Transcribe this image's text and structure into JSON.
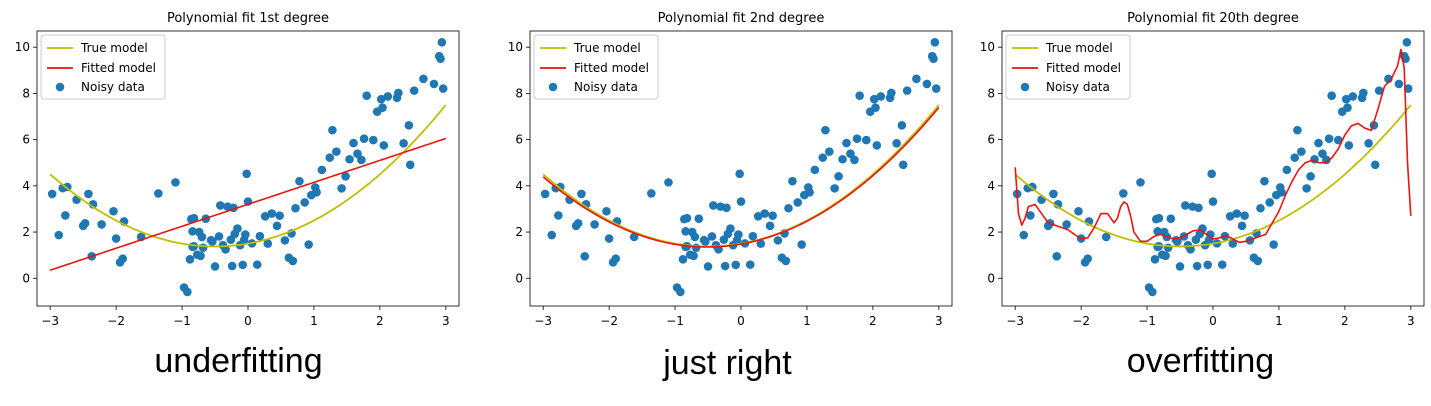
{
  "colors": {
    "true_model": "#bfbf00",
    "fitted_model": "#e8160e",
    "noisy_data": "#1f77b4"
  },
  "legend": {
    "true_model": "True model",
    "fitted_model": "Fitted model",
    "noisy_data": "Noisy data"
  },
  "chart_data": [
    {
      "type": "line",
      "title": "Polynomial fit 1st degree",
      "caption": "underfitting",
      "xlim": [
        -3.2,
        3.2
      ],
      "ylim": [
        -1.2,
        10.7
      ],
      "xticks": [
        -3,
        -2,
        -1,
        0,
        1,
        2,
        3
      ],
      "yticks": [
        0,
        2,
        4,
        6,
        8,
        10
      ],
      "true_model": {
        "coef": [
          1.5,
          0.5,
          0.5
        ]
      },
      "fitted_model": {
        "coef": [
          3.2,
          0.95
        ]
      },
      "legend_position": "upper-left",
      "grid": false
    },
    {
      "type": "line",
      "title": "Polynomial fit 2nd degree",
      "caption": "just right",
      "xlim": [
        -3.2,
        3.2
      ],
      "ylim": [
        -1.2,
        10.7
      ],
      "xticks": [
        -3,
        -2,
        -1,
        0,
        1,
        2,
        3
      ],
      "yticks": [
        0,
        2,
        4,
        6,
        8,
        10
      ],
      "true_model": {
        "coef": [
          1.5,
          0.5,
          0.5
        ]
      },
      "fitted_model": {
        "coef": [
          1.48,
          0.5,
          0.49
        ]
      },
      "legend_position": "upper-left",
      "grid": false
    },
    {
      "type": "line",
      "title": "Polynomial fit 20th degree",
      "caption": "overfitting",
      "xlim": [
        -3.2,
        3.2
      ],
      "ylim": [
        -1.2,
        10.7
      ],
      "xticks": [
        -3,
        -2,
        -1,
        0,
        1,
        2,
        3
      ],
      "yticks": [
        0,
        2,
        4,
        6,
        8,
        10
      ],
      "true_model": {
        "coef": [
          1.5,
          0.5,
          0.5
        ]
      },
      "fitted_model": {
        "x": [
          -3.0,
          -2.95,
          -2.9,
          -2.85,
          -2.8,
          -2.7,
          -2.6,
          -2.5,
          -2.4,
          -2.3,
          -2.2,
          -2.1,
          -2.0,
          -1.9,
          -1.8,
          -1.7,
          -1.6,
          -1.5,
          -1.45,
          -1.4,
          -1.35,
          -1.3,
          -1.25,
          -1.2,
          -1.1,
          -1.0,
          -0.9,
          -0.8,
          -0.7,
          -0.6,
          -0.5,
          -0.4,
          -0.3,
          -0.2,
          -0.1,
          0.0,
          0.1,
          0.2,
          0.3,
          0.4,
          0.5,
          0.6,
          0.7,
          0.8,
          0.9,
          1.0,
          1.1,
          1.2,
          1.3,
          1.4,
          1.5,
          1.6,
          1.7,
          1.8,
          1.9,
          2.0,
          2.1,
          2.2,
          2.3,
          2.4,
          2.5,
          2.6,
          2.7,
          2.8,
          2.85,
          2.9,
          2.95,
          3.0
        ],
        "y": [
          4.8,
          2.8,
          2.3,
          2.6,
          3.1,
          3.2,
          2.8,
          2.4,
          2.3,
          2.2,
          2.1,
          1.9,
          1.7,
          1.75,
          2.2,
          2.8,
          2.8,
          2.4,
          2.6,
          3.1,
          3.3,
          3.2,
          2.7,
          2.0,
          1.6,
          1.6,
          1.8,
          1.9,
          1.8,
          1.7,
          1.75,
          1.9,
          2.05,
          2.1,
          1.9,
          1.7,
          1.75,
          1.85,
          1.7,
          1.55,
          1.6,
          1.7,
          1.8,
          1.9,
          2.4,
          2.9,
          3.6,
          4.2,
          4.7,
          5.0,
          5.1,
          5.0,
          5.0,
          5.2,
          5.6,
          6.2,
          6.6,
          6.7,
          6.5,
          6.4,
          7.3,
          8.3,
          8.6,
          9.2,
          9.9,
          9.1,
          5.0,
          2.7
        ]
      },
      "legend_position": "upper-left",
      "grid": false
    }
  ],
  "noisy_data": {
    "x": [
      -2.97,
      -2.87,
      -2.81,
      -2.77,
      -2.74,
      -2.6,
      -2.5,
      -2.47,
      -2.42,
      -2.37,
      -2.35,
      -2.22,
      -2.04,
      -2.0,
      -1.94,
      -1.9,
      -1.88,
      -1.62,
      -1.36,
      -1.1,
      -0.97,
      -0.92,
      -0.88,
      -0.86,
      -0.84,
      -0.84,
      -0.82,
      -0.82,
      -0.77,
      -0.74,
      -0.72,
      -0.7,
      -0.68,
      -0.64,
      -0.56,
      -0.54,
      -0.5,
      -0.44,
      -0.42,
      -0.38,
      -0.34,
      -0.31,
      -0.26,
      -0.24,
      -0.22,
      -0.2,
      -0.16,
      -0.12,
      -0.08,
      -0.06,
      -0.04,
      -0.02,
      0.0,
      0.06,
      0.14,
      0.18,
      0.26,
      0.3,
      0.36,
      0.44,
      0.48,
      0.56,
      0.62,
      0.66,
      0.68,
      0.72,
      0.78,
      0.86,
      0.92,
      0.96,
      1.02,
      1.04,
      1.12,
      1.24,
      1.28,
      1.34,
      1.42,
      1.48,
      1.54,
      1.6,
      1.66,
      1.72,
      1.76,
      1.8,
      1.9,
      1.96,
      2.02,
      2.04,
      2.06,
      2.12,
      2.26,
      2.28,
      2.36,
      2.44,
      2.46,
      2.52,
      2.66,
      2.82,
      2.9,
      2.92,
      2.94,
      2.96
    ],
    "y": [
      3.65,
      1.87,
      3.9,
      2.72,
      3.95,
      3.4,
      2.27,
      2.38,
      3.65,
      0.95,
      3.2,
      2.33,
      2.9,
      1.72,
      0.69,
      0.85,
      2.46,
      1.79,
      3.67,
      4.15,
      -0.4,
      -0.59,
      0.82,
      2.56,
      1.36,
      2.03,
      2.6,
      1.39,
      1.02,
      2.0,
      0.97,
      1.79,
      1.32,
      2.58,
      1.65,
      1.59,
      0.51,
      1.81,
      3.15,
      1.43,
      1.25,
      3.1,
      1.67,
      0.53,
      3.05,
      1.92,
      2.15,
      1.43,
      0.58,
      1.65,
      1.89,
      4.52,
      3.32,
      1.51,
      0.59,
      1.82,
      2.68,
      1.5,
      2.8,
      2.27,
      2.71,
      1.64,
      0.89,
      1.94,
      0.75,
      3.03,
      4.2,
      3.28,
      1.46,
      3.6,
      3.93,
      3.72,
      4.69,
      5.22,
      6.41,
      5.48,
      3.89,
      4.41,
      5.15,
      5.85,
      5.39,
      5.12,
      6.04,
      7.9,
      5.98,
      7.21,
      7.75,
      7.38,
      5.75,
      7.87,
      7.81,
      8.02,
      5.84,
      6.62,
      4.91,
      8.12,
      8.63,
      8.41,
      9.61,
      9.5,
      10.21,
      8.21
    ]
  }
}
